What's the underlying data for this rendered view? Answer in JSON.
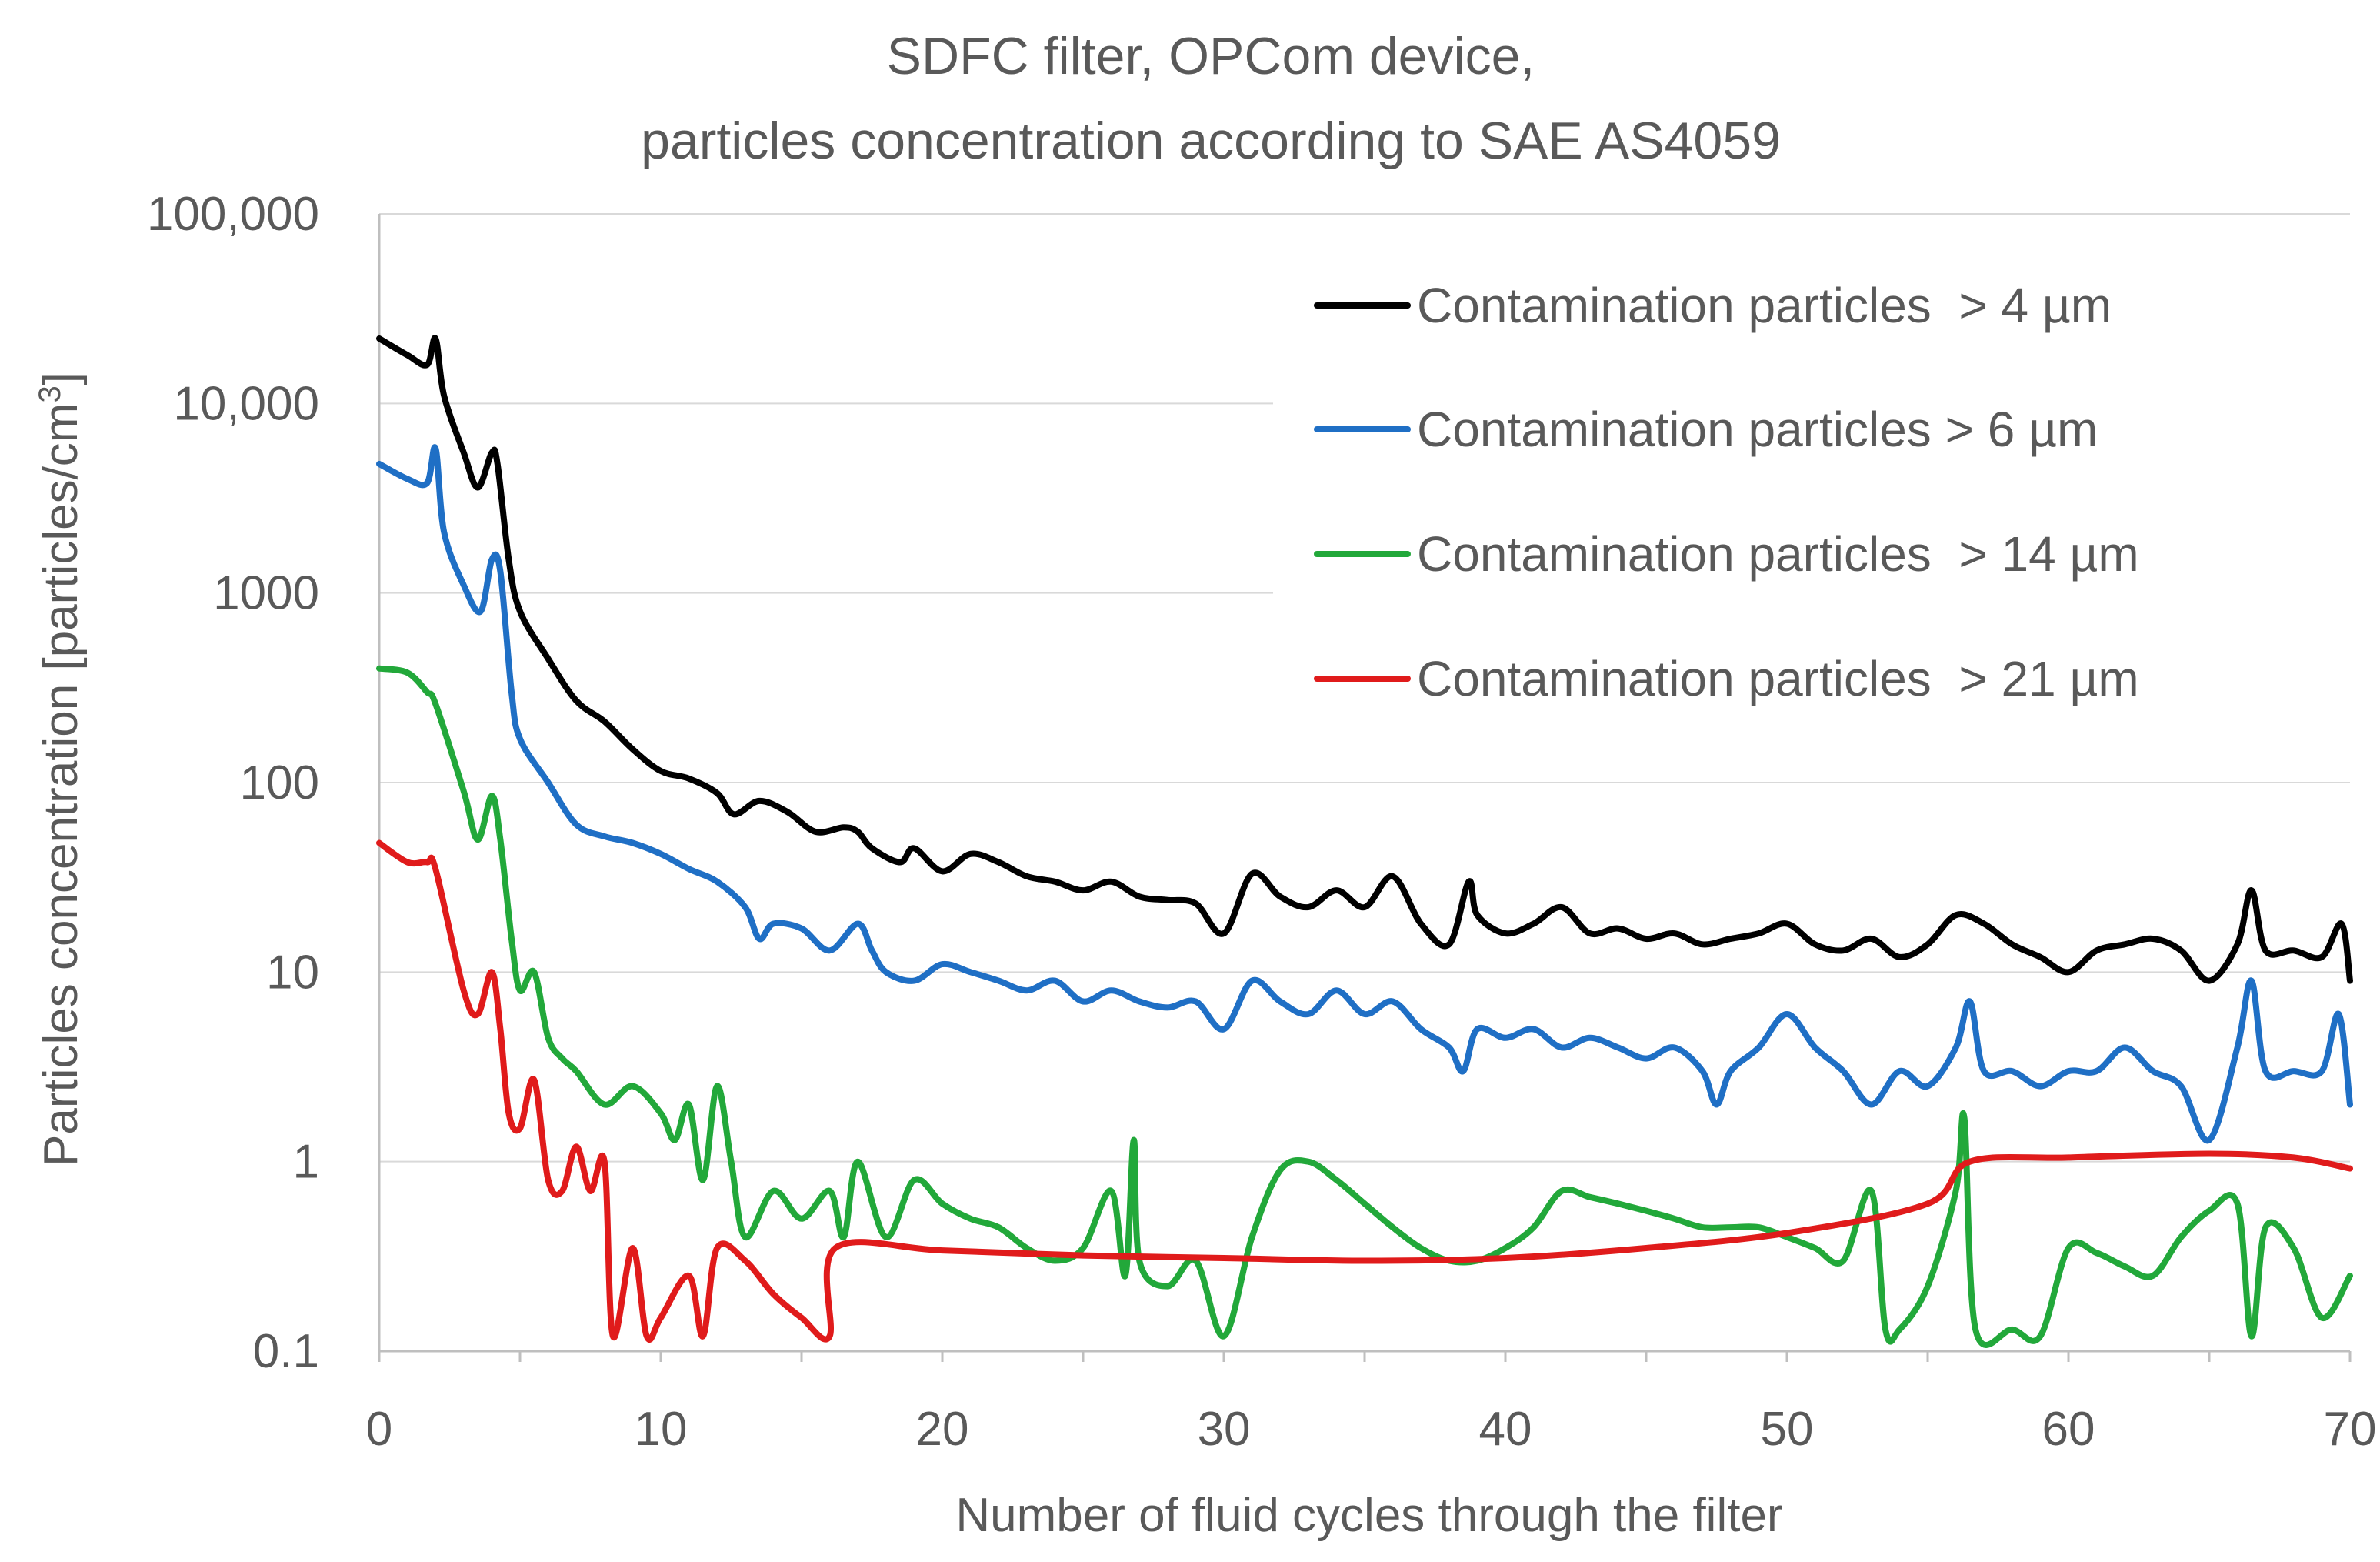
{
  "chart_data": {
    "type": "line",
    "title": [
      "SDFC filter, OPCom device,",
      "particles concentration according to SAE AS4059"
    ],
    "xlabel": "Number of fluid cycles through the filter",
    "ylabel": "Particles concentration [particles/cm",
    "ylabel_superscript": "3",
    "ylabel_suffix": "]",
    "xlim": [
      0,
      70
    ],
    "ylim": [
      0.1,
      100000
    ],
    "y_scale": "log",
    "grid": "horizontal",
    "legend_position": "top-right",
    "x_ticks": [
      0,
      10,
      20,
      30,
      40,
      50,
      60,
      70
    ],
    "x_tick_labels": [
      "0",
      "10",
      "20",
      "30",
      "40",
      "50",
      "60",
      "70"
    ],
    "y_ticks": [
      0.1,
      1,
      10,
      100,
      1000,
      10000,
      100000
    ],
    "y_tick_labels": [
      "0.1",
      "1",
      "10",
      "100",
      "1000",
      "10,000",
      "100,000"
    ],
    "series": [
      {
        "name": "Contamination particles  > 4 µm",
        "color": "#000000",
        "points": [
          [
            0,
            22000
          ],
          [
            1,
            18000
          ],
          [
            1.7,
            16000
          ],
          [
            2,
            22000
          ],
          [
            2.3,
            11000
          ],
          [
            3,
            5500
          ],
          [
            3.5,
            3600
          ],
          [
            4,
            5500
          ],
          [
            4.2,
            4800
          ],
          [
            4.6,
            1500
          ],
          [
            5,
            800
          ],
          [
            6,
            450
          ],
          [
            7,
            270
          ],
          [
            8,
            210
          ],
          [
            9,
            150
          ],
          [
            10,
            115
          ],
          [
            11,
            105
          ],
          [
            12,
            88
          ],
          [
            12.6,
            68
          ],
          [
            13.5,
            80
          ],
          [
            14.5,
            70
          ],
          [
            15.5,
            55
          ],
          [
            16.5,
            58
          ],
          [
            17,
            55
          ],
          [
            17.5,
            45
          ],
          [
            18.5,
            38
          ],
          [
            19,
            45
          ],
          [
            20,
            34
          ],
          [
            21,
            42
          ],
          [
            22,
            38
          ],
          [
            23,
            32
          ],
          [
            24,
            30
          ],
          [
            25,
            27
          ],
          [
            26,
            30
          ],
          [
            27,
            25
          ],
          [
            28,
            24
          ],
          [
            29,
            23
          ],
          [
            30,
            16
          ],
          [
            31,
            33
          ],
          [
            32,
            25
          ],
          [
            33,
            22
          ],
          [
            34,
            27
          ],
          [
            35,
            22
          ],
          [
            36,
            32
          ],
          [
            37,
            18
          ],
          [
            38,
            14
          ],
          [
            38.7,
            30
          ],
          [
            39,
            20
          ],
          [
            40,
            16
          ],
          [
            41,
            18
          ],
          [
            42,
            22
          ],
          [
            43,
            16
          ],
          [
            44,
            17
          ],
          [
            45,
            15
          ],
          [
            46,
            16
          ],
          [
            47,
            14
          ],
          [
            48,
            15
          ],
          [
            49,
            16
          ],
          [
            50,
            18
          ],
          [
            51,
            14
          ],
          [
            52,
            13
          ],
          [
            53,
            15
          ],
          [
            54,
            12
          ],
          [
            55,
            14
          ],
          [
            56,
            20
          ],
          [
            57,
            18
          ],
          [
            58,
            14
          ],
          [
            59,
            12
          ],
          [
            60,
            10
          ],
          [
            61,
            13
          ],
          [
            62,
            14
          ],
          [
            63,
            15
          ],
          [
            64,
            13
          ],
          [
            65,
            9
          ],
          [
            66,
            14
          ],
          [
            66.5,
            27
          ],
          [
            67,
            13
          ],
          [
            68,
            13
          ],
          [
            69,
            12
          ],
          [
            69.7,
            18
          ],
          [
            70,
            9
          ]
        ]
      },
      {
        "name": "Contamination particles > 6 µm",
        "color": "#1f6fc5",
        "points": [
          [
            0,
            4800
          ],
          [
            1,
            4000
          ],
          [
            1.7,
            3800
          ],
          [
            2,
            5800
          ],
          [
            2.3,
            2100
          ],
          [
            3,
            1100
          ],
          [
            3.6,
            800
          ],
          [
            4,
            1500
          ],
          [
            4.3,
            1300
          ],
          [
            4.7,
            300
          ],
          [
            5,
            170
          ],
          [
            6,
            100
          ],
          [
            7,
            60
          ],
          [
            8,
            52
          ],
          [
            9,
            48
          ],
          [
            10,
            42
          ],
          [
            11,
            35
          ],
          [
            12,
            30
          ],
          [
            13,
            22
          ],
          [
            13.5,
            15
          ],
          [
            14,
            18
          ],
          [
            15,
            17
          ],
          [
            16,
            13
          ],
          [
            17,
            18
          ],
          [
            17.5,
            13
          ],
          [
            18,
            10
          ],
          [
            19,
            9
          ],
          [
            20,
            11
          ],
          [
            21,
            10
          ],
          [
            22,
            9
          ],
          [
            23,
            8
          ],
          [
            24,
            9
          ],
          [
            25,
            7
          ],
          [
            26,
            8
          ],
          [
            27,
            7
          ],
          [
            28,
            6.5
          ],
          [
            29,
            7
          ],
          [
            30,
            5
          ],
          [
            31,
            9
          ],
          [
            32,
            7
          ],
          [
            33,
            6
          ],
          [
            34,
            8
          ],
          [
            35,
            6
          ],
          [
            36,
            7
          ],
          [
            37,
            5
          ],
          [
            38,
            4
          ],
          [
            38.5,
            3
          ],
          [
            39,
            5
          ],
          [
            40,
            4.5
          ],
          [
            41,
            5
          ],
          [
            42,
            4
          ],
          [
            43,
            4.5
          ],
          [
            44,
            4
          ],
          [
            45,
            3.5
          ],
          [
            46,
            4
          ],
          [
            47,
            3
          ],
          [
            47.5,
            2
          ],
          [
            48,
            3
          ],
          [
            49,
            4
          ],
          [
            50,
            6
          ],
          [
            51,
            4
          ],
          [
            52,
            3
          ],
          [
            53,
            2
          ],
          [
            54,
            3
          ],
          [
            55,
            2.5
          ],
          [
            56,
            4
          ],
          [
            56.5,
            7
          ],
          [
            57,
            3
          ],
          [
            58,
            3
          ],
          [
            59,
            2.5
          ],
          [
            60,
            3
          ],
          [
            61,
            3
          ],
          [
            62,
            4
          ],
          [
            63,
            3
          ],
          [
            64,
            2.5
          ],
          [
            65,
            1.3
          ],
          [
            66,
            4
          ],
          [
            66.5,
            9
          ],
          [
            67,
            3
          ],
          [
            68,
            3
          ],
          [
            69,
            3
          ],
          [
            69.6,
            6
          ],
          [
            70,
            2
          ]
        ]
      },
      {
        "name": "Contamination particles  > 14 µm",
        "color": "#22a83a",
        "points": [
          [
            0,
            400
          ],
          [
            1,
            380
          ],
          [
            1.7,
            300
          ],
          [
            2,
            260
          ],
          [
            3,
            90
          ],
          [
            3.5,
            50
          ],
          [
            4,
            85
          ],
          [
            4.3,
            50
          ],
          [
            4.7,
            15
          ],
          [
            5,
            8
          ],
          [
            5.5,
            10
          ],
          [
            6,
            4.5
          ],
          [
            6.5,
            3.5
          ],
          [
            7,
            3
          ],
          [
            8,
            2
          ],
          [
            9,
            2.5
          ],
          [
            10,
            1.8
          ],
          [
            10.5,
            1.3
          ],
          [
            11,
            2
          ],
          [
            11.5,
            0.8
          ],
          [
            12,
            2.5
          ],
          [
            12.5,
            1
          ],
          [
            13,
            0.4
          ],
          [
            14,
            0.7
          ],
          [
            15,
            0.5
          ],
          [
            16,
            0.7
          ],
          [
            16.5,
            0.4
          ],
          [
            17,
            1
          ],
          [
            18,
            0.4
          ],
          [
            19,
            0.8
          ],
          [
            20,
            0.6
          ],
          [
            21,
            0.5
          ],
          [
            22,
            0.45
          ],
          [
            23,
            0.35
          ],
          [
            24,
            0.3
          ],
          [
            25,
            0.35
          ],
          [
            26,
            0.7
          ],
          [
            26.5,
            0.25
          ],
          [
            26.8,
            1.3
          ],
          [
            27,
            0.3
          ],
          [
            28,
            0.22
          ],
          [
            29,
            0.3
          ],
          [
            30,
            0.12
          ],
          [
            31,
            0.4
          ],
          [
            32,
            0.9
          ],
          [
            33,
            1
          ],
          [
            34,
            0.8
          ],
          [
            35,
            0.6
          ],
          [
            36,
            0.45
          ],
          [
            37,
            0.35
          ],
          [
            38,
            0.3
          ],
          [
            39,
            0.3
          ],
          [
            40,
            0.35
          ],
          [
            41,
            0.45
          ],
          [
            42,
            0.7
          ],
          [
            43,
            0.65
          ],
          [
            44,
            0.6
          ],
          [
            45,
            0.55
          ],
          [
            46,
            0.5
          ],
          [
            47,
            0.45
          ],
          [
            48,
            0.45
          ],
          [
            49,
            0.45
          ],
          [
            50,
            0.4
          ],
          [
            51,
            0.35
          ],
          [
            52,
            0.3
          ],
          [
            53,
            0.7
          ],
          [
            53.5,
            0.13
          ],
          [
            54,
            0.13
          ],
          [
            55,
            0.22
          ],
          [
            56,
            0.7
          ],
          [
            56.3,
            1.7
          ],
          [
            56.7,
            0.13
          ],
          [
            58,
            0.13
          ],
          [
            59,
            0.12
          ],
          [
            60,
            0.35
          ],
          [
            61,
            0.33
          ],
          [
            62,
            0.28
          ],
          [
            63,
            0.25
          ],
          [
            64,
            0.4
          ],
          [
            65,
            0.55
          ],
          [
            66,
            0.6
          ],
          [
            66.5,
            0.12
          ],
          [
            67,
            0.45
          ],
          [
            68,
            0.35
          ],
          [
            69,
            0.15
          ],
          [
            70,
            0.25
          ]
        ]
      },
      {
        "name": "Contamination particles  > 21 µm",
        "color": "#e01b1b",
        "points": [
          [
            0,
            48
          ],
          [
            1,
            38
          ],
          [
            1.7,
            38
          ],
          [
            2,
            35
          ],
          [
            3,
            8
          ],
          [
            3.5,
            6
          ],
          [
            4,
            10
          ],
          [
            4.3,
            5
          ],
          [
            4.6,
            1.8
          ],
          [
            5,
            1.5
          ],
          [
            5.5,
            2.7
          ],
          [
            6,
            0.8
          ],
          [
            6.5,
            0.7
          ],
          [
            7,
            1.2
          ],
          [
            7.5,
            0.7
          ],
          [
            8,
            1
          ],
          [
            8.3,
            0.12
          ],
          [
            9,
            0.35
          ],
          [
            9.5,
            0.12
          ],
          [
            10,
            0.15
          ],
          [
            11,
            0.25
          ],
          [
            11.5,
            0.12
          ],
          [
            12,
            0.35
          ],
          [
            13,
            0.3
          ],
          [
            14,
            0.2
          ],
          [
            15,
            0.15
          ],
          [
            16,
            0.12
          ],
          [
            16.2,
            0.35
          ],
          [
            20,
            0.34
          ],
          [
            25,
            0.32
          ],
          [
            30,
            0.31
          ],
          [
            35,
            0.3
          ],
          [
            40,
            0.31
          ],
          [
            45,
            0.35
          ],
          [
            50,
            0.42
          ],
          [
            55,
            0.6
          ],
          [
            56.5,
            1
          ],
          [
            60,
            1.05
          ],
          [
            65,
            1.1
          ],
          [
            68,
            1.05
          ],
          [
            70,
            0.92
          ]
        ]
      }
    ]
  }
}
